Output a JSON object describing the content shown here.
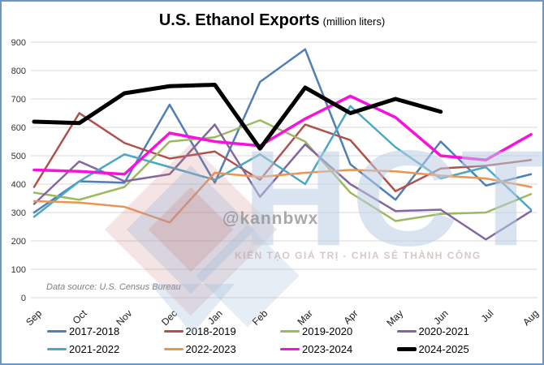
{
  "frame": {
    "border_color": "#6d96c5",
    "background": "#ffffff"
  },
  "header": {
    "title": "U.S. Ethanol Exports",
    "subtitle": "(million liters)"
  },
  "source_note": "Data source: U.S. Census Bureau",
  "watermark": {
    "brand": "HCT",
    "handle": "@kannbwx",
    "slogan": "KIẾN TẠO GIÁ TRỊ - CHIA SẺ THÀNH CÔNG"
  },
  "chart_data": {
    "type": "line",
    "title": "U.S. Ethanol Exports",
    "subtitle": "(million liters)",
    "categories": [
      "Sep",
      "Oct",
      "Nov",
      "Dec",
      "Jan",
      "Feb",
      "Mar",
      "Apr",
      "May",
      "Jun",
      "Jul",
      "Aug"
    ],
    "ylim": [
      0,
      900
    ],
    "ytick_step": 100,
    "grid": true,
    "legend_position": "bottom",
    "grid_color": "#d9d9d9",
    "tick_label_color": "#333333",
    "series": [
      {
        "name": "2017-2018",
        "color": "#4e7fb5",
        "width": 2.5,
        "values": [
          300,
          410,
          405,
          680,
          405,
          760,
          875,
          470,
          345,
          550,
          395,
          435
        ]
      },
      {
        "name": "2018-2019",
        "color": "#b0504a",
        "width": 2.5,
        "values": [
          390,
          650,
          545,
          490,
          515,
          415,
          610,
          555,
          375,
          455,
          465,
          485
        ]
      },
      {
        "name": "2019-2020",
        "color": "#9cb95e",
        "width": 2.5,
        "values": [
          370,
          345,
          390,
          550,
          565,
          625,
          550,
          370,
          270,
          295,
          300,
          365
        ]
      },
      {
        "name": "2020-2021",
        "color": "#83669f",
        "width": 2.5,
        "values": [
          330,
          480,
          410,
          435,
          610,
          355,
          540,
          400,
          305,
          310,
          205,
          305
        ]
      },
      {
        "name": "2021-2022",
        "color": "#4ba7c3",
        "width": 2.5,
        "values": [
          285,
          410,
          505,
          460,
          415,
          505,
          400,
          675,
          530,
          420,
          460,
          310
        ]
      },
      {
        "name": "2022-2023",
        "color": "#ec9552",
        "width": 2.5,
        "values": [
          340,
          335,
          320,
          265,
          440,
          425,
          440,
          450,
          445,
          430,
          420,
          390
        ]
      },
      {
        "name": "2023-2024",
        "color": "#fa10dc",
        "width": 3.5,
        "values": [
          450,
          445,
          435,
          580,
          550,
          535,
          630,
          710,
          635,
          500,
          485,
          575
        ]
      },
      {
        "name": "2024-2025",
        "color": "#000000",
        "width": 5,
        "values": [
          620,
          615,
          720,
          745,
          750,
          525,
          740,
          650,
          700,
          655,
          null,
          null
        ]
      }
    ]
  }
}
